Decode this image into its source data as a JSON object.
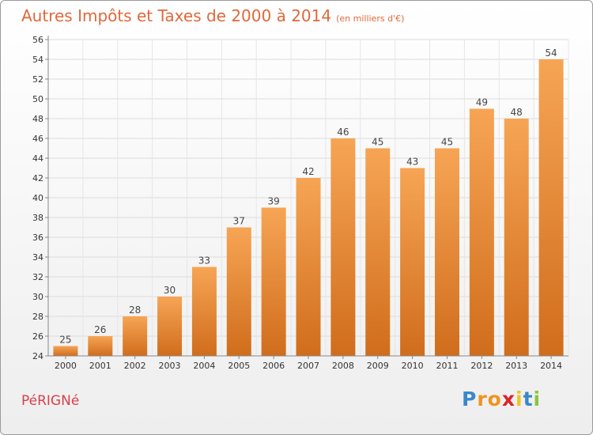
{
  "header": {
    "title": "Autres Impôts et Taxes de 2000 à 2014",
    "subtitle": "(en milliers d'€)"
  },
  "location": "PéRIGNé",
  "logo": {
    "chars": [
      "P",
      "r",
      "o",
      "x",
      "i",
      "t",
      "i"
    ],
    "colors": [
      "#3a87c9",
      "#f0931e",
      "#f0931e",
      "#d9252a",
      "#f0c51e",
      "#3a87c9",
      "#8ac43f"
    ]
  },
  "colors": {
    "bar_top": "#f6a555",
    "bar_bottom": "#d06d1c",
    "title": "#e0683a"
  },
  "chart_data": {
    "type": "bar",
    "categories": [
      "2000",
      "2001",
      "2002",
      "2003",
      "2004",
      "2005",
      "2006",
      "2007",
      "2008",
      "2009",
      "2010",
      "2011",
      "2012",
      "2013",
      "2014"
    ],
    "values": [
      25,
      26,
      28,
      30,
      33,
      37,
      39,
      42,
      46,
      45,
      43,
      45,
      49,
      48,
      54
    ],
    "ylim": [
      24,
      56
    ],
    "yticks": [
      24,
      26,
      28,
      30,
      32,
      34,
      36,
      38,
      40,
      42,
      44,
      46,
      48,
      50,
      52,
      54,
      56
    ],
    "grid": true,
    "data_labels": true
  }
}
